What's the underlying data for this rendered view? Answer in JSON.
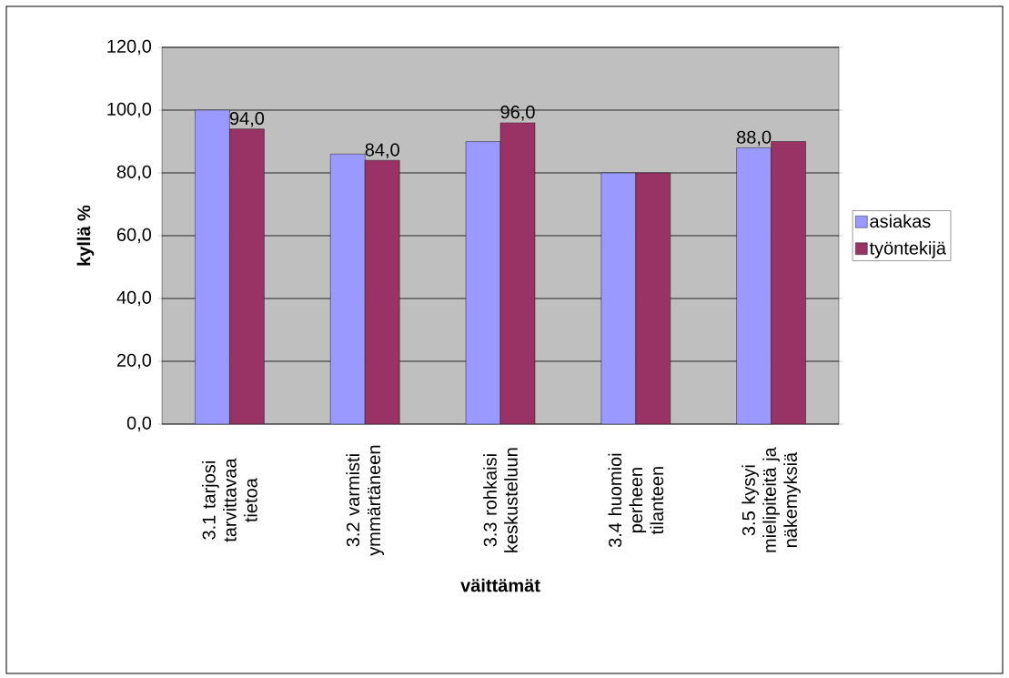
{
  "chart_data": {
    "type": "bar",
    "xlabel": "väittämät",
    "ylabel": "kyllä %",
    "categories": [
      "3.1 tarjosi tarvittavaa tietoa",
      "3.2 varmisti ymmärtäneen",
      "3.3 rohkaisi keskusteluun",
      "3.4 huomioi perheen tilanteen",
      "3.5 kysyi mielipiteitä ja näkemyksiä"
    ],
    "series": [
      {
        "name": "asiakas",
        "color": "#9999ff",
        "values": [
          100,
          86,
          90,
          80,
          88
        ],
        "value_labels": [
          null,
          null,
          null,
          null,
          "88,0"
        ]
      },
      {
        "name": "työntekijä",
        "color": "#993366",
        "values": [
          94,
          84,
          96,
          80,
          90
        ],
        "value_labels": [
          "94,0",
          "84,0",
          "96,0",
          null,
          null
        ]
      }
    ],
    "ylim": [
      0,
      120
    ],
    "yticks": [
      {
        "value": 0,
        "label": "0,0"
      },
      {
        "value": 20,
        "label": "20,0"
      },
      {
        "value": 40,
        "label": "40,0"
      },
      {
        "value": 60,
        "label": "60,0"
      },
      {
        "value": 80,
        "label": "80,0"
      },
      {
        "value": 100,
        "label": "100,0"
      },
      {
        "value": 120,
        "label": "120,0"
      }
    ],
    "grid": "y",
    "legend": "right"
  }
}
